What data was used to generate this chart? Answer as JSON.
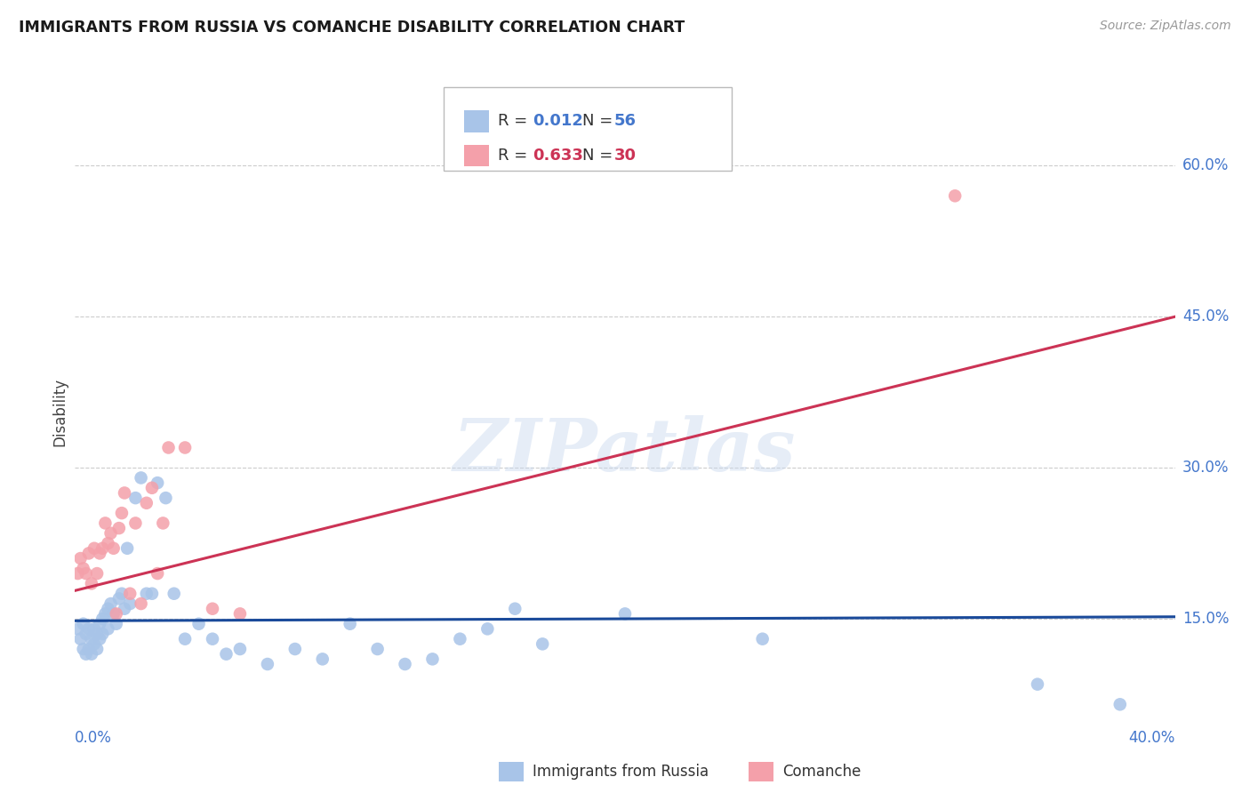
{
  "title": "IMMIGRANTS FROM RUSSIA VS COMANCHE DISABILITY CORRELATION CHART",
  "source": "Source: ZipAtlas.com",
  "ylabel": "Disability",
  "legend_label_blue": "Immigrants from Russia",
  "legend_label_pink": "Comanche",
  "color_blue": "#a8c4e8",
  "color_pink": "#f4a0aa",
  "color_line_blue": "#1a4a9a",
  "color_line_pink": "#cc3355",
  "watermark": "ZIPatlas",
  "xlim": [
    0.0,
    0.4
  ],
  "ylim": [
    0.04,
    0.67
  ],
  "ytick_vals": [
    0.15,
    0.3,
    0.45,
    0.6
  ],
  "ytick_labels": [
    "15.0%",
    "30.0%",
    "45.0%",
    "60.0%"
  ],
  "blue_line_x": [
    0.0,
    0.4
  ],
  "blue_line_y": [
    0.148,
    0.152
  ],
  "pink_line_x": [
    0.0,
    0.4
  ],
  "pink_line_y": [
    0.178,
    0.45
  ],
  "blue_x": [
    0.001,
    0.002,
    0.003,
    0.003,
    0.004,
    0.004,
    0.005,
    0.005,
    0.006,
    0.006,
    0.007,
    0.007,
    0.008,
    0.008,
    0.009,
    0.009,
    0.01,
    0.01,
    0.011,
    0.012,
    0.012,
    0.013,
    0.014,
    0.015,
    0.016,
    0.017,
    0.018,
    0.019,
    0.02,
    0.022,
    0.024,
    0.026,
    0.028,
    0.03,
    0.033,
    0.036,
    0.04,
    0.045,
    0.05,
    0.055,
    0.06,
    0.07,
    0.08,
    0.09,
    0.1,
    0.11,
    0.12,
    0.13,
    0.14,
    0.15,
    0.16,
    0.17,
    0.2,
    0.25,
    0.35,
    0.38
  ],
  "blue_y": [
    0.14,
    0.13,
    0.12,
    0.145,
    0.115,
    0.135,
    0.12,
    0.14,
    0.115,
    0.13,
    0.125,
    0.14,
    0.12,
    0.135,
    0.13,
    0.145,
    0.135,
    0.15,
    0.155,
    0.14,
    0.16,
    0.165,
    0.155,
    0.145,
    0.17,
    0.175,
    0.16,
    0.22,
    0.165,
    0.27,
    0.29,
    0.175,
    0.175,
    0.285,
    0.27,
    0.175,
    0.13,
    0.145,
    0.13,
    0.115,
    0.12,
    0.105,
    0.12,
    0.11,
    0.145,
    0.12,
    0.105,
    0.11,
    0.13,
    0.14,
    0.16,
    0.125,
    0.155,
    0.13,
    0.085,
    0.065
  ],
  "pink_x": [
    0.001,
    0.002,
    0.003,
    0.004,
    0.005,
    0.006,
    0.007,
    0.008,
    0.009,
    0.01,
    0.011,
    0.012,
    0.013,
    0.014,
    0.015,
    0.016,
    0.017,
    0.018,
    0.02,
    0.022,
    0.024,
    0.026,
    0.028,
    0.03,
    0.032,
    0.034,
    0.04,
    0.05,
    0.06,
    0.32
  ],
  "pink_y": [
    0.195,
    0.21,
    0.2,
    0.195,
    0.215,
    0.185,
    0.22,
    0.195,
    0.215,
    0.22,
    0.245,
    0.225,
    0.235,
    0.22,
    0.155,
    0.24,
    0.255,
    0.275,
    0.175,
    0.245,
    0.165,
    0.265,
    0.28,
    0.195,
    0.245,
    0.32,
    0.32,
    0.16,
    0.155,
    0.57
  ]
}
